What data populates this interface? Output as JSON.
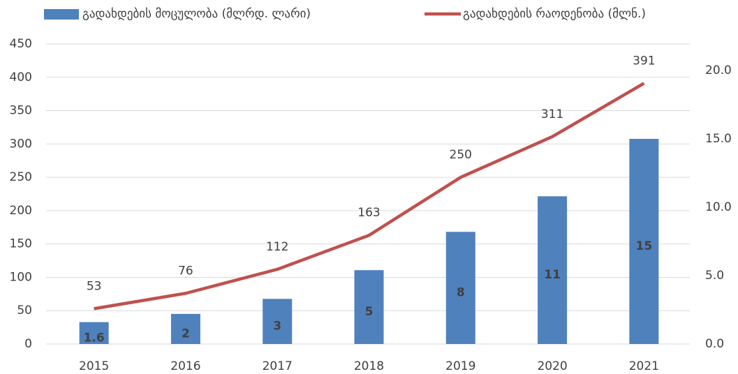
{
  "chart_data": {
    "type": "bar_line",
    "categories": [
      "2015",
      "2016",
      "2017",
      "2018",
      "2019",
      "2020",
      "2021"
    ],
    "series": [
      {
        "name": "გადახდების მოცულობა (მლრდ. ლარი)",
        "color": "#4f81bd",
        "axis": "y2",
        "type": "bar",
        "values": [
          1.6,
          2.2,
          3.3,
          5.4,
          8.2,
          10.8,
          15.0
        ],
        "value_labels": [
          "1.6",
          "2",
          "3",
          "5",
          "8",
          "11",
          "15"
        ]
      },
      {
        "name": "გადახდების რაოდენობა (მლნ.)",
        "color": "#c0504d",
        "axis": "y",
        "type": "line",
        "values": [
          53,
          76,
          112,
          163,
          250,
          311,
          391
        ]
      }
    ],
    "ylim": [
      0,
      450
    ],
    "yticks": [
      0,
      50,
      100,
      150,
      200,
      250,
      300,
      350,
      400,
      450
    ],
    "y2lim": [
      0,
      21.94
    ],
    "y2ticks": [
      {
        "value": 0,
        "label": "0.0"
      },
      {
        "value": 5,
        "label": "5.0"
      },
      {
        "value": 10,
        "label": "10.0"
      },
      {
        "value": 15,
        "label": "15.0"
      },
      {
        "value": 20,
        "label": "20.0"
      }
    ],
    "grid": true,
    "legend": "top"
  }
}
